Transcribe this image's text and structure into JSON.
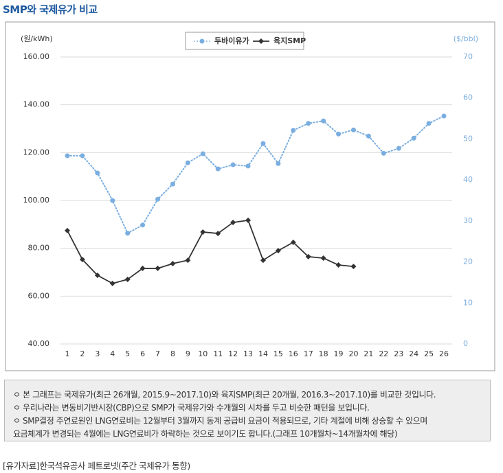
{
  "chart_data": {
    "type": "line",
    "title": "SMP와 국제유가 비교",
    "y_label": "(원/kWh)",
    "y2_label": "($/bbl)",
    "categories": [
      "1",
      "2",
      "3",
      "4",
      "5",
      "6",
      "7",
      "8",
      "9",
      "10",
      "11",
      "12",
      "13",
      "14",
      "15",
      "16",
      "17",
      "18",
      "19",
      "20",
      "21",
      "22",
      "23",
      "24",
      "25",
      "26"
    ],
    "series": [
      {
        "name": "두바이유가",
        "color": "#7aaee0",
        "axis": "y2",
        "style": "dotted",
        "marker": "circle",
        "values": [
          45.9,
          45.9,
          41.7,
          35.0,
          27.0,
          29.0,
          35.3,
          39.0,
          44.2,
          46.4,
          42.7,
          43.7,
          43.4,
          48.9,
          44.0,
          52.1,
          53.8,
          54.4,
          51.2,
          52.2,
          50.7,
          46.5,
          47.7,
          50.2,
          53.8,
          55.6
        ]
      },
      {
        "name": "육지SMP",
        "color": "#333333",
        "style": "solid",
        "marker": "diamond",
        "values": [
          87.4,
          75.3,
          68.7,
          65.3,
          67.0,
          71.6,
          71.6,
          73.6,
          75.0,
          86.8,
          86.2,
          90.8,
          91.7,
          75.0,
          79.0,
          82.5,
          76.5,
          75.9,
          73.0,
          72.4,
          null,
          null,
          null,
          null,
          null,
          null
        ]
      }
    ],
    "ylim": [
      40,
      160
    ],
    "yticks": [
      {
        "value": 40,
        "label": "40.00"
      },
      {
        "value": 60,
        "label": "60.00"
      },
      {
        "value": 80,
        "label": "80.00"
      },
      {
        "value": 100,
        "label": "100.00"
      },
      {
        "value": 120,
        "label": "120.00"
      },
      {
        "value": 140,
        "label": "140.00"
      },
      {
        "value": 160,
        "label": "160.00"
      }
    ],
    "y2lim": [
      0,
      70
    ],
    "y2ticks": [
      0,
      10,
      20,
      30,
      40,
      50,
      60,
      70
    ],
    "grid": true,
    "legend": "top"
  },
  "notes": [
    "ㅇ 본 그래프는 국제유가(최근 26개월, 2015.9~2017.10)와 육지SMP(최근 20개월, 2016.3~2017.10)를 비교한 것입니다.",
    "ㅇ 우리나라는 변동비기반시장(CBP)으로 SMP가 국제유가와 수개월의 시차를 두고 비슷한 패턴을 보입니다.",
    "ㅇ SMP결정 주연료원인 LNG연료비는 12월부터 3월까지 동계 공급비 요금이 적용되므로, 기타 계절에 비해 상승할 수 있으며",
    "요금체계가 변경되는 4월에는 LNG연료비가 하락하는 것으로 보이기도 합니다.(그래프 10개월차~14개월차에 해당)"
  ],
  "source": "[유가자료]한국석유공사 페트로넷(주간 국제유가 동향)"
}
